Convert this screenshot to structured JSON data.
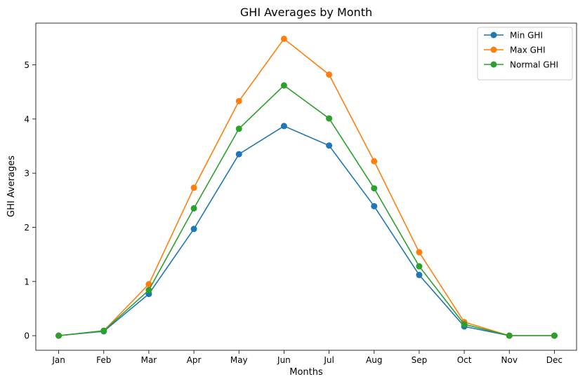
{
  "chart_data": {
    "type": "line",
    "title": "GHI Averages by Month",
    "xlabel": "Months",
    "ylabel": "GHI Averages",
    "categories": [
      "Jan",
      "Feb",
      "Mar",
      "Apr",
      "May",
      "Jun",
      "Jul",
      "Aug",
      "Sep",
      "Oct",
      "Nov",
      "Dec"
    ],
    "yticks": [
      0,
      1,
      2,
      3,
      4,
      5
    ],
    "ylim": [
      -0.27,
      5.77
    ],
    "grid": false,
    "legend_position": "top-right",
    "series": [
      {
        "name": "Min GHI",
        "color": "#1f77b4",
        "marker": "circle",
        "values": [
          0.0,
          0.08,
          0.77,
          1.97,
          3.35,
          3.87,
          3.51,
          2.39,
          1.12,
          0.17,
          0.0,
          0.0
        ]
      },
      {
        "name": "Max GHI",
        "color": "#ff7f0e",
        "marker": "circle",
        "values": [
          0.0,
          0.09,
          0.95,
          2.73,
          4.33,
          5.48,
          4.82,
          3.22,
          1.54,
          0.25,
          0.0,
          0.0
        ]
      },
      {
        "name": "Normal GHI",
        "color": "#2ca02c",
        "marker": "circle",
        "values": [
          0.0,
          0.09,
          0.84,
          2.35,
          3.82,
          4.62,
          4.01,
          2.72,
          1.28,
          0.21,
          0.0,
          0.0
        ]
      }
    ]
  }
}
